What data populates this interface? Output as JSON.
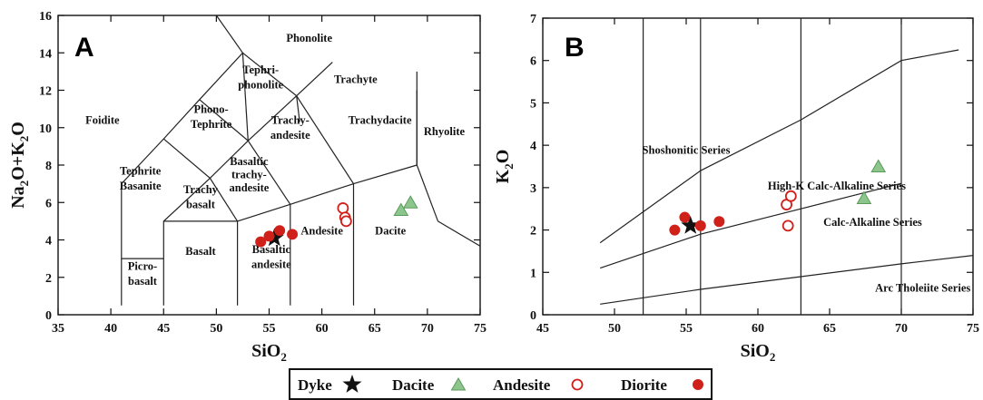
{
  "colors": {
    "dyke": "#111111",
    "dacite_fill": "#8cc68c",
    "dacite_stroke": "#5a9a5a",
    "andesite_stroke": "#d0201a",
    "diorite": "#d0201a"
  },
  "legend": [
    {
      "key": "dyke",
      "label": "Dyke",
      "marker": "star"
    },
    {
      "key": "dacite",
      "label": "Dacite",
      "marker": "triangle"
    },
    {
      "key": "andesite",
      "label": "Andesite",
      "marker": "open-circle"
    },
    {
      "key": "diorite",
      "label": "Diorite",
      "marker": "filled-circle"
    }
  ],
  "chart_data": [
    {
      "panel": "A",
      "type": "scatter",
      "xlabel": "SiO₂",
      "ylabel": "Na₂O+K₂O",
      "xlim": [
        35,
        75
      ],
      "ylim": [
        0,
        16
      ],
      "xticks": [
        35,
        40,
        45,
        50,
        55,
        60,
        65,
        70,
        75
      ],
      "yticks": [
        0,
        2,
        4,
        6,
        8,
        10,
        12,
        14,
        16
      ],
      "field_labels": [
        {
          "text": "Foidite",
          "x": 39.2,
          "y": 10.2
        },
        {
          "text": "Phonolite",
          "x": 58.8,
          "y": 14.6
        },
        {
          "text": "Tephri-",
          "x": 54.2,
          "y": 12.9
        },
        {
          "text": "phonolite",
          "x": 54.2,
          "y": 12.1
        },
        {
          "text": "Phono-",
          "x": 49.5,
          "y": 10.8
        },
        {
          "text": "Tephrite",
          "x": 49.5,
          "y": 10.0
        },
        {
          "text": "Trachyte",
          "x": 63.2,
          "y": 12.4
        },
        {
          "text": "Trachy-",
          "x": 57.0,
          "y": 10.2
        },
        {
          "text": "andesite",
          "x": 57.0,
          "y": 9.4
        },
        {
          "text": "Trachydacite",
          "x": 65.5,
          "y": 10.2
        },
        {
          "text": "Rhyolite",
          "x": 71.6,
          "y": 9.6
        },
        {
          "text": "Basaltic",
          "x": 53.1,
          "y": 8.0
        },
        {
          "text": "trachy-",
          "x": 53.1,
          "y": 7.3
        },
        {
          "text": "andesite",
          "x": 53.1,
          "y": 6.6
        },
        {
          "text": "Tephrite",
          "x": 42.8,
          "y": 7.5
        },
        {
          "text": "Basanite",
          "x": 42.8,
          "y": 6.7
        },
        {
          "text": "Trachy",
          "x": 48.5,
          "y": 6.5
        },
        {
          "text": "basalt",
          "x": 48.5,
          "y": 5.7
        },
        {
          "text": "Basalt",
          "x": 48.5,
          "y": 3.2
        },
        {
          "text": "Basaltic",
          "x": 55.2,
          "y": 3.3
        },
        {
          "text": "andesite",
          "x": 55.2,
          "y": 2.5
        },
        {
          "text": "Andesite",
          "x": 60.0,
          "y": 4.3
        },
        {
          "text": "Dacite",
          "x": 66.5,
          "y": 4.3
        },
        {
          "text": "Picro-",
          "x": 43.0,
          "y": 2.4
        },
        {
          "text": "basalt",
          "x": 43.0,
          "y": 1.6
        }
      ],
      "boundaries": [
        [
          [
            41,
            0.5
          ],
          [
            41,
            7
          ],
          [
            45,
            9.4
          ],
          [
            48.4,
            11.5
          ],
          [
            52.5,
            14
          ],
          [
            57.6,
            11.7
          ],
          [
            63,
            7
          ],
          [
            63,
            0.5
          ]
        ],
        [
          [
            41,
            3
          ],
          [
            45,
            3
          ]
        ],
        [
          [
            45,
            0.5
          ],
          [
            45,
            5
          ],
          [
            49.4,
            7.3
          ],
          [
            53,
            9.3
          ],
          [
            57.6,
            11.7
          ],
          [
            61,
            13.5
          ]
        ],
        [
          [
            52,
            0.5
          ],
          [
            52,
            5
          ],
          [
            57,
            5.9
          ],
          [
            63,
            7
          ],
          [
            69,
            8
          ],
          [
            69,
            13
          ]
        ],
        [
          [
            45,
            5
          ],
          [
            52,
            5
          ]
        ],
        [
          [
            57,
            0.5
          ],
          [
            57,
            5.9
          ]
        ],
        [
          [
            45,
            9.4
          ],
          [
            49.4,
            7.3
          ],
          [
            52,
            5
          ]
        ],
        [
          [
            48.4,
            11.5
          ],
          [
            53,
            9.3
          ],
          [
            57,
            5.9
          ]
        ],
        [
          [
            52.5,
            14
          ],
          [
            53,
            9.3
          ]
        ],
        [
          [
            57.6,
            11.7
          ],
          [
            57.9,
            10.3
          ]
        ],
        [
          [
            69,
            8
          ],
          [
            69,
            12
          ]
        ],
        [
          [
            69,
            8
          ],
          [
            71,
            5
          ],
          [
            77,
            3
          ]
        ],
        [
          [
            50,
            16
          ],
          [
            52.5,
            14
          ]
        ]
      ],
      "series": [
        {
          "key": "dyke",
          "name": "Dyke",
          "marker": "star",
          "points": [
            [
              55.5,
              4.1
            ]
          ]
        },
        {
          "key": "dacite",
          "name": "Dacite",
          "marker": "triangle",
          "points": [
            [
              67.5,
              5.6
            ],
            [
              68.4,
              6.0
            ]
          ]
        },
        {
          "key": "andesite",
          "name": "Andesite",
          "marker": "open-circle",
          "points": [
            [
              62.0,
              5.7
            ],
            [
              62.2,
              5.2
            ],
            [
              62.3,
              5.0
            ]
          ]
        },
        {
          "key": "diorite",
          "name": "Diorite",
          "marker": "filled-circle",
          "points": [
            [
              54.2,
              3.9
            ],
            [
              55.0,
              4.2
            ],
            [
              56.0,
              4.5
            ],
            [
              57.2,
              4.3
            ]
          ]
        }
      ]
    },
    {
      "panel": "B",
      "type": "scatter",
      "xlabel": "SiO₂",
      "ylabel": "K₂O",
      "xlim": [
        45,
        75
      ],
      "ylim": [
        0,
        7
      ],
      "xticks": [
        45,
        50,
        55,
        60,
        65,
        70,
        75
      ],
      "yticks": [
        0,
        1,
        2,
        3,
        4,
        5,
        6,
        7
      ],
      "vertical_lines": [
        52,
        56,
        63,
        70
      ],
      "series_labels": [
        {
          "text": "Shoshonitic Series",
          "x": 55.0,
          "y": 3.8
        },
        {
          "text": "High-K Calc-Alkaline Series",
          "x": 65.5,
          "y": 2.95
        },
        {
          "text": "Calc-Alkaline Series",
          "x": 68.0,
          "y": 2.1
        },
        {
          "text": "Arc Tholeiite Series",
          "x": 71.5,
          "y": 0.55
        }
      ],
      "boundaries": [
        [
          [
            49,
            1.7
          ],
          [
            56,
            3.4
          ],
          [
            63,
            4.6
          ],
          [
            70,
            6.0
          ],
          [
            74,
            6.25
          ]
        ],
        [
          [
            49,
            1.1
          ],
          [
            56,
            1.9
          ],
          [
            63,
            2.5
          ],
          [
            70,
            3.1
          ]
        ],
        [
          [
            49,
            0.25
          ],
          [
            56,
            0.6
          ],
          [
            63,
            0.9
          ],
          [
            70,
            1.2
          ],
          [
            75,
            1.4
          ]
        ]
      ],
      "series": [
        {
          "key": "dyke",
          "name": "Dyke",
          "marker": "star",
          "points": [
            [
              55.3,
              2.1
            ]
          ]
        },
        {
          "key": "dacite",
          "name": "Dacite",
          "marker": "triangle",
          "points": [
            [
              67.4,
              2.75
            ],
            [
              68.4,
              3.5
            ]
          ]
        },
        {
          "key": "andesite",
          "name": "Andesite",
          "marker": "open-circle",
          "points": [
            [
              62.0,
              2.6
            ],
            [
              62.3,
              2.8
            ],
            [
              62.1,
              2.1
            ]
          ]
        },
        {
          "key": "diorite",
          "name": "Diorite",
          "marker": "filled-circle",
          "points": [
            [
              54.2,
              2.0
            ],
            [
              54.9,
              2.3
            ],
            [
              56.0,
              2.1
            ],
            [
              57.3,
              2.2
            ]
          ]
        }
      ]
    }
  ]
}
